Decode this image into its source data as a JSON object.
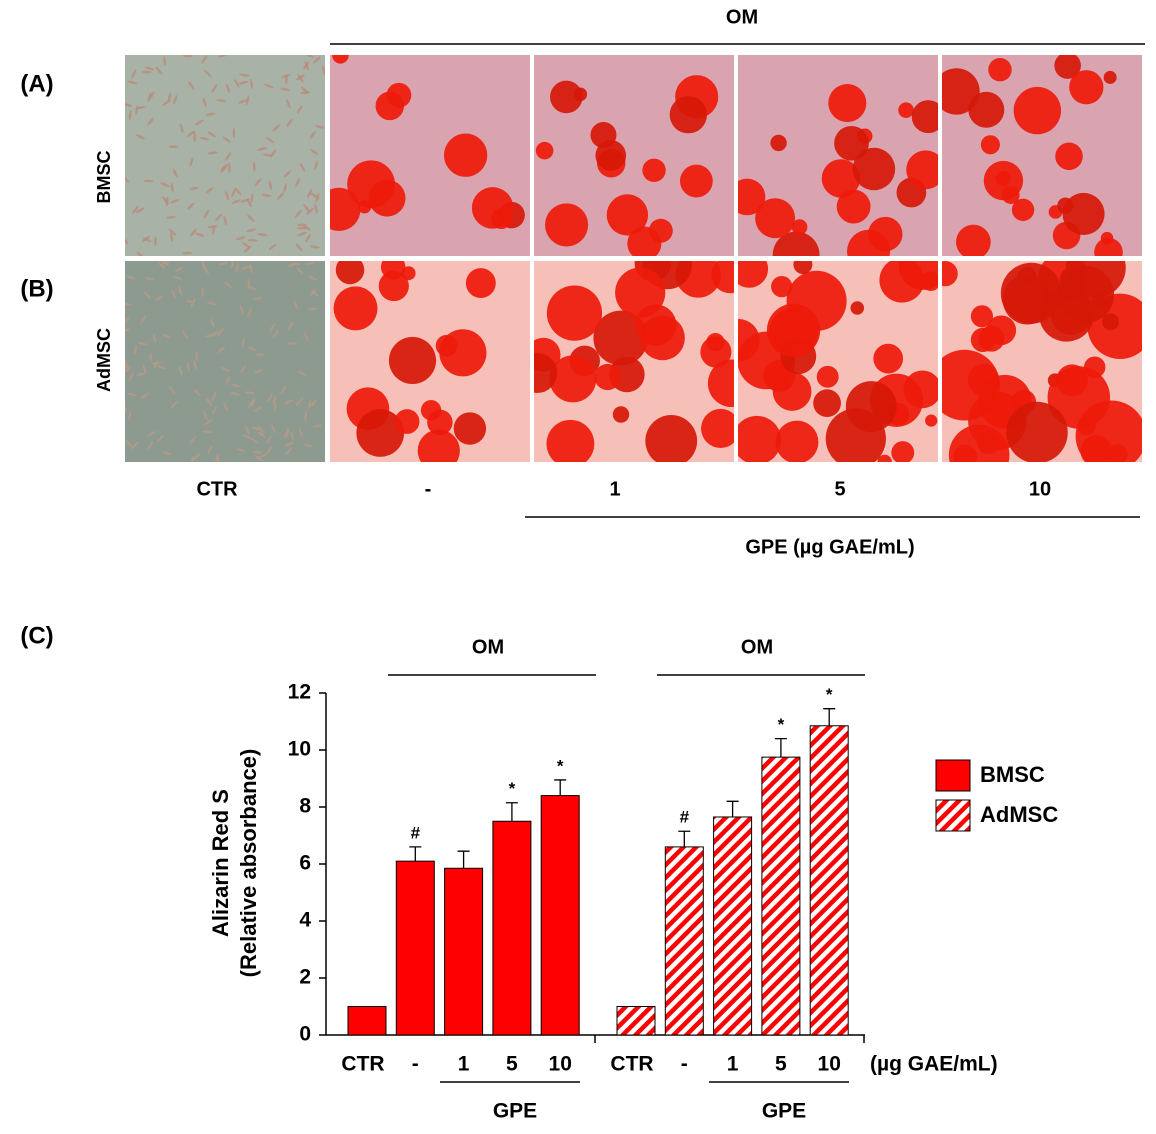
{
  "chart_data": {
    "type": "bar",
    "ylabel": [
      "Alizarin Red S",
      "(Relative absorbance)"
    ],
    "categories": [
      "CTR",
      "-",
      "1",
      "5",
      "10"
    ],
    "group_header": "OM",
    "group_label": "GPE",
    "x_unit": "(µg GAE/mL)",
    "series": [
      {
        "name": "BMSC",
        "color": "#ff0000",
        "pattern": "solid",
        "values": [
          1,
          6.1,
          5.85,
          7.5,
          8.4
        ],
        "errors": [
          null,
          0.5,
          0.6,
          0.65,
          0.55
        ],
        "markers": [
          null,
          "#",
          null,
          "*",
          "*"
        ]
      },
      {
        "name": "AdMSC",
        "color": "#ff0000",
        "pattern": "hatch",
        "values": [
          1,
          6.6,
          7.65,
          9.75,
          10.85
        ],
        "errors": [
          null,
          0.55,
          0.55,
          0.65,
          0.6
        ],
        "markers": [
          null,
          "#",
          null,
          "*",
          "*"
        ]
      }
    ],
    "ylim": [
      0,
      12
    ],
    "yticks": [
      0,
      2,
      4,
      6,
      8,
      10,
      12
    ],
    "legend": "right"
  },
  "figure": {
    "panels": [
      "(A)",
      "(B)",
      "(C)"
    ],
    "header": "OM",
    "rows": [
      "BMSC",
      "AdMSC"
    ],
    "columns": [
      "CTR",
      "-",
      "1",
      "5",
      "10"
    ],
    "footer": "GPE (µg GAE/mL)"
  }
}
